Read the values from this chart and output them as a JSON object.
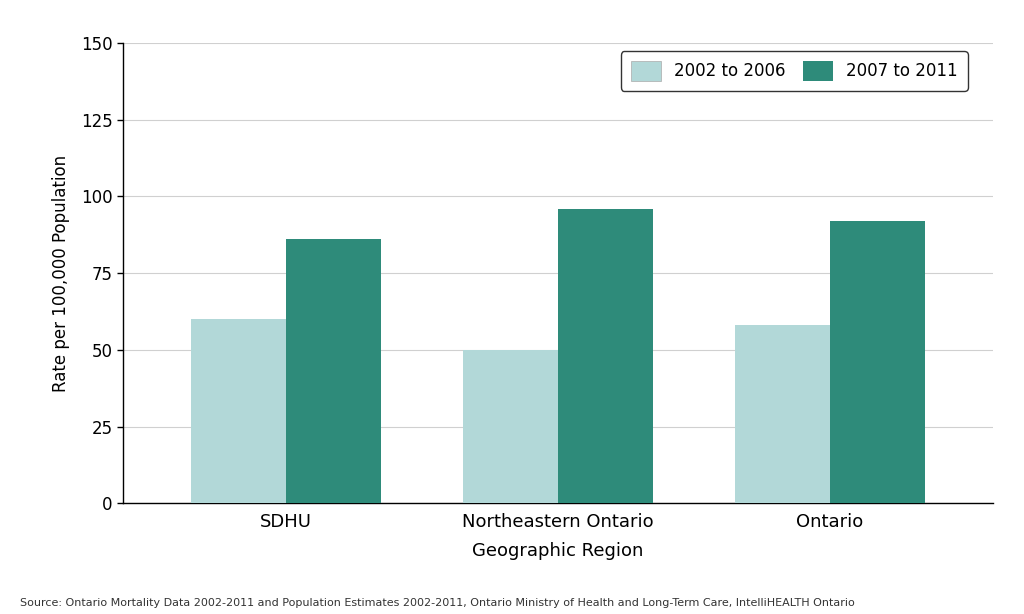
{
  "categories": [
    "SDHU",
    "Northeastern Ontario",
    "Ontario"
  ],
  "values_2002_2006": [
    60,
    50,
    58
  ],
  "values_2007_2011": [
    86,
    96,
    92
  ],
  "color_2002_2006": "#b2d8d8",
  "color_2007_2011": "#2e8b7a",
  "ylabel": "Rate per 100,000 Population",
  "xlabel": "Geographic Region",
  "ylim": [
    0,
    150
  ],
  "yticks": [
    0,
    25,
    50,
    75,
    100,
    125,
    150
  ],
  "legend_labels": [
    "2002 to 2006",
    "2007 to 2011"
  ],
  "source_text": "Source: Ontario Mortality Data 2002-2011 and Population Estimates 2002-2011, Ontario Ministry of Health and Long-Term Care, IntelliHEALTH Ontario",
  "bar_width": 0.35,
  "background_color": "#ffffff",
  "grid_color": "#d0d0d0"
}
